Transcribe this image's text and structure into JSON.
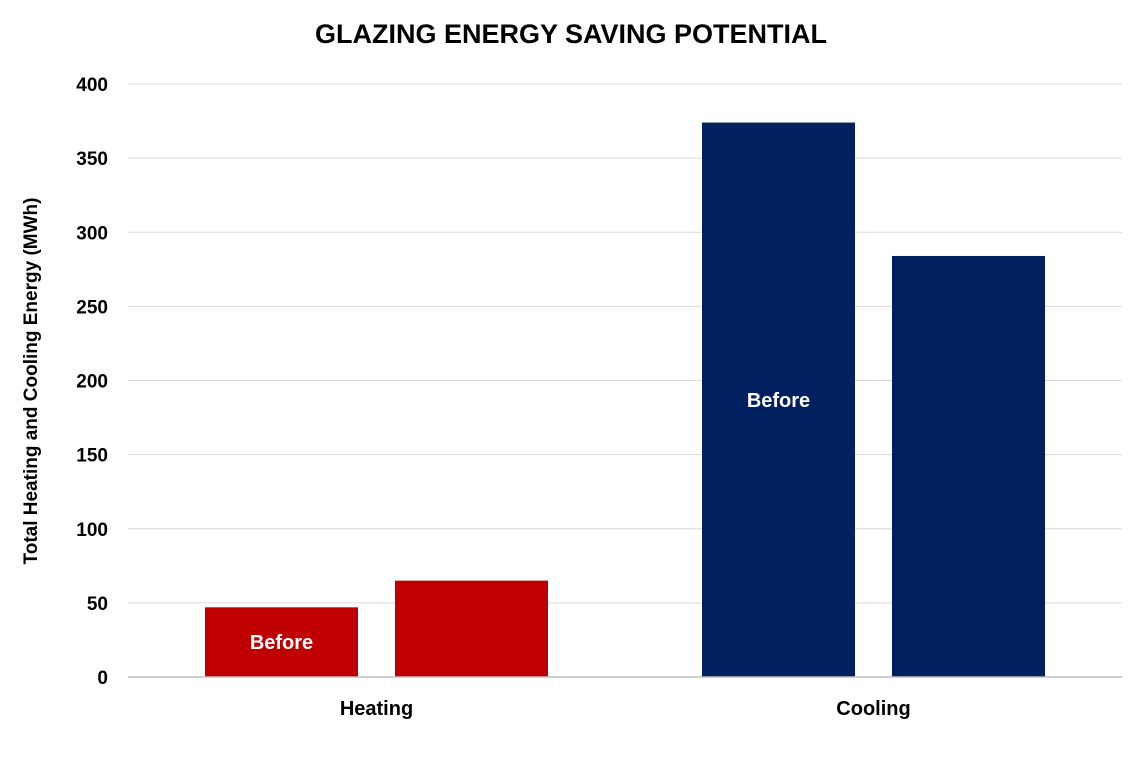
{
  "chart_data": {
    "type": "bar",
    "title": "GLAZING ENERGY SAVING POTENTIAL",
    "xlabel": "",
    "ylabel": "Total Heating and Cooling Energy (MWh)",
    "ylim": [
      0,
      400
    ],
    "yticks": [
      0,
      50,
      100,
      150,
      200,
      250,
      300,
      350,
      400
    ],
    "grid": true,
    "legend": "none",
    "categories": [
      {
        "label": "Heating",
        "color": "#c00000",
        "bars": [
          {
            "value": 47,
            "label": "Before"
          },
          {
            "value": 65,
            "label": ""
          }
        ]
      },
      {
        "label": "Cooling",
        "color": "#002060",
        "bars": [
          {
            "value": 374,
            "label": "Before"
          },
          {
            "value": 284,
            "label": ""
          }
        ]
      }
    ]
  }
}
